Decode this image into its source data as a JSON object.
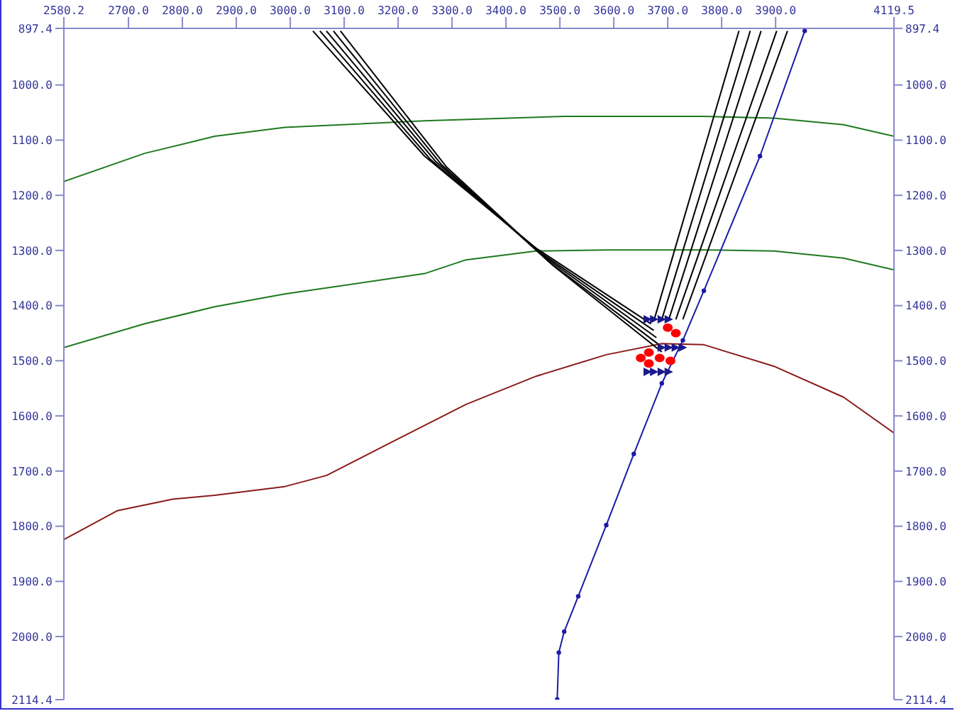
{
  "chart_data": {
    "type": "line",
    "xlim": [
      2580.2,
      4119.5
    ],
    "ylim": [
      2114.4,
      897.4
    ],
    "y2lim": [
      2114.4,
      897.4
    ],
    "xticks": [
      {
        "value": 2580.2,
        "label": "2580.2"
      },
      {
        "value": 2700,
        "label": "2700.0"
      },
      {
        "value": 2800,
        "label": "2800.0"
      },
      {
        "value": 2900,
        "label": "2900.0"
      },
      {
        "value": 3000,
        "label": "3000.0"
      },
      {
        "value": 3100,
        "label": "3100.0"
      },
      {
        "value": 3200,
        "label": "3200.0"
      },
      {
        "value": 3300,
        "label": "3300.0"
      },
      {
        "value": 3400,
        "label": "3400.0"
      },
      {
        "value": 3500,
        "label": "3500.0"
      },
      {
        "value": 3600,
        "label": "3600.0"
      },
      {
        "value": 3700,
        "label": "3700.0"
      },
      {
        "value": 3800,
        "label": "3800.0"
      },
      {
        "value": 3900,
        "label": "3900.0"
      },
      {
        "value": 4119.5,
        "label": "4119.5"
      }
    ],
    "yticks": [
      {
        "value": 897.4,
        "label": "897.4"
      },
      {
        "value": 1000,
        "label": "1000.0"
      },
      {
        "value": 1100,
        "label": "1100.0"
      },
      {
        "value": 1200,
        "label": "1200.0"
      },
      {
        "value": 1300,
        "label": "1300.0"
      },
      {
        "value": 1400,
        "label": "1400.0"
      },
      {
        "value": 1500,
        "label": "1500.0"
      },
      {
        "value": 1600,
        "label": "1600.0"
      },
      {
        "value": 1700,
        "label": "1700.0"
      },
      {
        "value": 1800,
        "label": "1800.0"
      },
      {
        "value": 1900,
        "label": "1900.0"
      },
      {
        "value": 2000,
        "label": "2000.0"
      },
      {
        "value": 2114.4,
        "label": "2114.4"
      }
    ],
    "y2ticks": [
      {
        "value": 897.4,
        "label": "897.4"
      },
      {
        "value": 1000,
        "label": "1000.0"
      },
      {
        "value": 1100,
        "label": "1100.0"
      },
      {
        "value": 1200,
        "label": "1200.0"
      },
      {
        "value": 1300,
        "label": "1300.0"
      },
      {
        "value": 1400,
        "label": "1400.0"
      },
      {
        "value": 1500,
        "label": "1500.0"
      },
      {
        "value": 1600,
        "label": "1600.0"
      },
      {
        "value": 1700,
        "label": "1700.0"
      },
      {
        "value": 1800,
        "label": "1800.0"
      },
      {
        "value": 1900,
        "label": "1900.0"
      },
      {
        "value": 2000,
        "label": "2000.0"
      },
      {
        "value": 2114.4,
        "label": "2114.4"
      }
    ],
    "marker": "none",
    "line_style": "solid",
    "series": [
      {
        "color": "#1e7a1e",
        "x": [
          2580.2,
          2730,
          2860,
          2990,
          3249,
          3508,
          3767,
          3897,
          4026,
          4119.5
        ],
        "values": [
          1175,
          1124,
          1093,
          1077,
          1065,
          1057,
          1057,
          1060,
          1072,
          1093
        ]
      },
      {
        "color": "#1e7a1e",
        "x": [
          2580.2,
          2730,
          2860,
          2990,
          3249,
          3326,
          3456,
          3586,
          3767,
          3897,
          4026,
          4119.5
        ],
        "values": [
          1476,
          1433,
          1402,
          1379,
          1342,
          1317,
          1301,
          1299,
          1299,
          1301,
          1314,
          1335
        ]
      },
      {
        "color": "#8b1a1a",
        "x": [
          2580.2,
          2679,
          2782,
          2860,
          2990,
          3067,
          3197,
          3326,
          3456,
          3586,
          3689,
          3767,
          3897,
          4026,
          4119.5
        ],
        "values": [
          1824,
          1772,
          1751,
          1744,
          1728,
          1708,
          1643,
          1579,
          1528,
          1489,
          1469,
          1471,
          1510,
          1566,
          1631
        ]
      },
      {
        "color": "#000000",
        "x": [
          3042,
          3249,
          3456,
          3669
        ],
        "values": [
          902,
          1129,
          1296,
          1433
        ]
      },
      {
        "color": "#000000",
        "x": [
          3055,
          3259,
          3464,
          3674
        ],
        "values": [
          902,
          1134,
          1304,
          1445
        ]
      },
      {
        "color": "#000000",
        "x": [
          3067,
          3270,
          3472,
          3679
        ],
        "values": [
          902,
          1139,
          1312,
          1458
        ]
      },
      {
        "color": "#000000",
        "x": [
          3080,
          3280,
          3479,
          3684
        ],
        "values": [
          902,
          1144,
          1320,
          1471
        ]
      },
      {
        "color": "#000000",
        "x": [
          3093,
          3290,
          3487,
          3689
        ],
        "values": [
          902,
          1149,
          1327,
          1484
        ]
      },
      {
        "color": "#000000",
        "x": [
          3832,
          3675
        ],
        "values": [
          902,
          1425
        ]
      },
      {
        "color": "#000000",
        "x": [
          3853,
          3689
        ],
        "values": [
          902,
          1425
        ]
      },
      {
        "color": "#000000",
        "x": [
          3873,
          3702
        ],
        "values": [
          902,
          1425
        ]
      },
      {
        "color": "#000000",
        "x": [
          3902,
          3715
        ],
        "values": [
          902,
          1425
        ]
      },
      {
        "color": "#000000",
        "x": [
          3922,
          3728
        ],
        "values": [
          902,
          1425
        ]
      },
      {
        "color": "#1a1aa8",
        "marker": "circle",
        "x": [
          3954,
          3871,
          3767,
          3728,
          3689,
          3637,
          3586,
          3534,
          3508,
          3498,
          3495
        ],
        "values": [
          902,
          1129,
          1373,
          1463,
          1541,
          1669,
          1798,
          1927,
          1991,
          2029,
          2114
        ]
      },
      {
        "type": "scatter",
        "color": "#ff0000",
        "marker": "circle",
        "x": [
          3650,
          3665,
          3665,
          3685,
          3705,
          3715,
          3700
        ],
        "values": [
          1495,
          1485,
          1505,
          1495,
          1500,
          1450,
          1440
        ]
      },
      {
        "type": "scatter",
        "color": "#1a1a8c",
        "marker": "triangle",
        "x": [
          3663,
          3675,
          3689,
          3702,
          3689,
          3702,
          3715,
          3728,
          3663,
          3675,
          3689,
          3702
        ],
        "values": [
          1425,
          1425,
          1425,
          1425,
          1476,
          1476,
          1476,
          1476,
          1520,
          1520,
          1520,
          1520
        ]
      }
    ]
  }
}
